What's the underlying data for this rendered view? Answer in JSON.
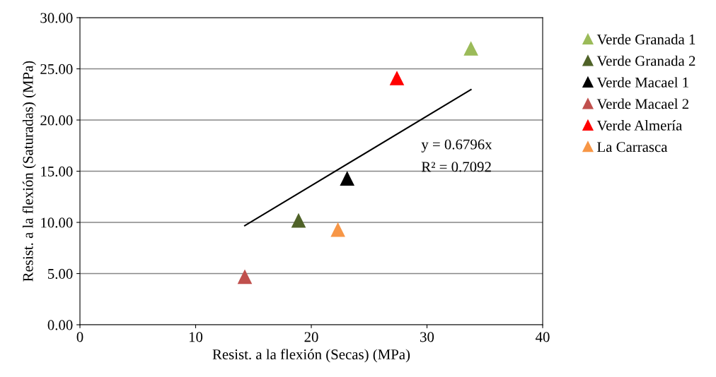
{
  "chart_data": {
    "type": "scatter",
    "xlabel": "Resist. a la flexión (Secas) (MPa)",
    "ylabel": "Resist. a la flexión (Saturadas) (MPa)",
    "series": [
      {
        "name": "Verde Granada 1",
        "color": "#9bbb59",
        "x": [
          33.8
        ],
        "values": [
          27.0
        ]
      },
      {
        "name": "Verde Granada 2",
        "color": "#4f6228",
        "x": [
          18.9
        ],
        "values": [
          10.2
        ]
      },
      {
        "name": "Verde Macael 1",
        "color": "#000000",
        "x": [
          23.1
        ],
        "values": [
          14.3
        ]
      },
      {
        "name": "Verde Macael 2",
        "color": "#c0504d",
        "x": [
          14.25
        ],
        "values": [
          4.7
        ]
      },
      {
        "name": "Verde Almería",
        "color": "#ff0000",
        "x": [
          27.4
        ],
        "values": [
          24.1
        ]
      },
      {
        "name": "La Carrasca",
        "color": "#f79646",
        "x": [
          22.3
        ],
        "values": [
          9.3
        ]
      },
      {
        "type": "line",
        "color": "#000000",
        "x": [
          14.25,
          33.8
        ],
        "values": [
          9.68,
          22.97
        ],
        "marker": "none"
      }
    ],
    "annotations": [
      "y = 0.6796x",
      "R² = 0.7092"
    ],
    "xlim": [
      0,
      40
    ],
    "xticks": [
      0,
      10,
      20,
      30,
      40
    ],
    "ylim": [
      0,
      30
    ],
    "yticks": [
      {
        "value": 0,
        "label": "0.00"
      },
      {
        "value": 5,
        "label": "5.00"
      },
      {
        "value": 10,
        "label": "10.00"
      },
      {
        "value": 15,
        "label": "15.00"
      },
      {
        "value": 20,
        "label": "20.00"
      },
      {
        "value": 25,
        "label": "25.00"
      },
      {
        "value": 30,
        "label": "30.00"
      }
    ],
    "grid": "y",
    "legend": "right",
    "marker": "triangle"
  }
}
